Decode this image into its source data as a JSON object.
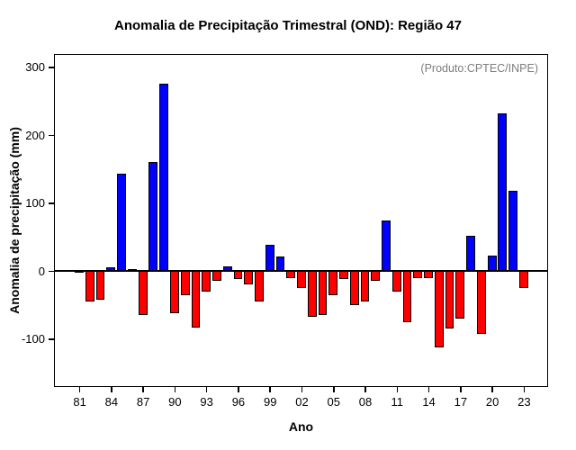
{
  "chart_data": {
    "type": "bar",
    "title": "Anomalia de Precipitação Trimestral (OND): Região 47",
    "annotation": "(Produto:CPTEC/INPE)",
    "xlabel": "Ano",
    "ylabel": "Anomalia de precipitação (mm)",
    "years": [
      1981,
      1982,
      1983,
      1984,
      1985,
      1986,
      1987,
      1988,
      1989,
      1990,
      1991,
      1992,
      1993,
      1994,
      1995,
      1996,
      1997,
      1998,
      1999,
      2000,
      2001,
      2002,
      2003,
      2004,
      2005,
      2006,
      2007,
      2008,
      2009,
      2010,
      2011,
      2012,
      2013,
      2014,
      2015,
      2016,
      2017,
      2018,
      2019,
      2020,
      2021,
      2022,
      2023
    ],
    "values": [
      -3,
      -45,
      -42,
      5,
      143,
      3,
      -65,
      160,
      276,
      -62,
      -35,
      -83,
      -30,
      -15,
      7,
      -12,
      -20,
      -45,
      38,
      22,
      -10,
      -25,
      -68,
      -65,
      -35,
      -12,
      -50,
      -45,
      -15,
      75,
      -30,
      -75,
      -10,
      -10,
      -112,
      -85,
      -70,
      52,
      -92,
      23,
      232,
      118,
      -25
    ],
    "x_tick_labels": [
      "81",
      "84",
      "87",
      "90",
      "93",
      "96",
      "99",
      "02",
      "05",
      "08",
      "11",
      "14",
      "17",
      "20",
      "23"
    ],
    "x_tick_step": 3,
    "y_ticks": [
      -100,
      0,
      100,
      200,
      300
    ],
    "ylim": [
      -150,
      300
    ],
    "grid": false,
    "legend": "none",
    "colors": {
      "positive_bar": "#0000ff",
      "negative_bar": "#ff0000",
      "bar_border": "#000000",
      "annotation_text": "#7d7d7d",
      "axis": "#000000"
    }
  }
}
